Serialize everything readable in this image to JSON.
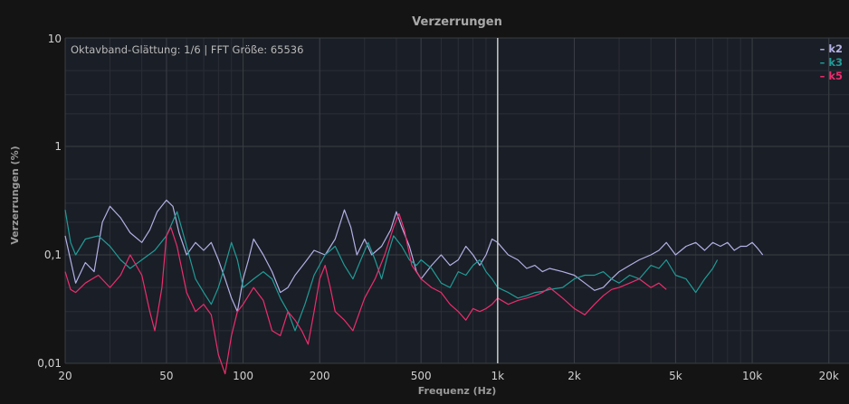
{
  "chart_data": {
    "type": "line",
    "title": "Verzerrungen",
    "xlabel": "Frequenz (Hz)",
    "ylabel": "Verzerrungen (%)",
    "info_text": "Oktavband-Glättung: 1/6 | FFT Größe: 65536",
    "x_scale": "log",
    "y_scale": "log",
    "xlim": [
      20,
      24000
    ],
    "ylim": [
      0.01,
      10
    ],
    "x_ticks": [
      {
        "value": 20,
        "label": "20"
      },
      {
        "value": 50,
        "label": "50"
      },
      {
        "value": 100,
        "label": "100"
      },
      {
        "value": 200,
        "label": "200"
      },
      {
        "value": 500,
        "label": "500"
      },
      {
        "value": 1000,
        "label": "1k"
      },
      {
        "value": 2000,
        "label": "2k"
      },
      {
        "value": 5000,
        "label": "5k"
      },
      {
        "value": 10000,
        "label": "10k"
      },
      {
        "value": 20000,
        "label": "20k"
      }
    ],
    "y_ticks": [
      {
        "value": 10,
        "label": "10"
      },
      {
        "value": 1,
        "label": "1"
      },
      {
        "value": 0.1,
        "label": "0,1"
      },
      {
        "value": 0.01,
        "label": "0,01"
      }
    ],
    "cursor_x": 1000,
    "grid": true,
    "legend_position": "top-right",
    "colors": {
      "background": "#141414",
      "plot_background": "#1a1e26",
      "grid": "#3a3d44",
      "cursor": "#c8c8c8"
    },
    "series": [
      {
        "name": "k2",
        "color": "#b3b0e6",
        "points": [
          [
            20,
            0.15
          ],
          [
            22,
            0.055
          ],
          [
            24,
            0.085
          ],
          [
            26,
            0.07
          ],
          [
            28,
            0.2
          ],
          [
            30,
            0.28
          ],
          [
            33,
            0.22
          ],
          [
            36,
            0.16
          ],
          [
            40,
            0.13
          ],
          [
            43,
            0.17
          ],
          [
            46,
            0.25
          ],
          [
            50,
            0.32
          ],
          [
            53,
            0.28
          ],
          [
            56,
            0.16
          ],
          [
            60,
            0.1
          ],
          [
            65,
            0.13
          ],
          [
            70,
            0.11
          ],
          [
            75,
            0.13
          ],
          [
            80,
            0.09
          ],
          [
            85,
            0.06
          ],
          [
            90,
            0.04
          ],
          [
            95,
            0.03
          ],
          [
            100,
            0.06
          ],
          [
            105,
            0.09
          ],
          [
            110,
            0.14
          ],
          [
            120,
            0.1
          ],
          [
            130,
            0.07
          ],
          [
            140,
            0.045
          ],
          [
            150,
            0.05
          ],
          [
            160,
            0.065
          ],
          [
            175,
            0.085
          ],
          [
            190,
            0.11
          ],
          [
            210,
            0.1
          ],
          [
            230,
            0.14
          ],
          [
            250,
            0.26
          ],
          [
            265,
            0.18
          ],
          [
            280,
            0.1
          ],
          [
            300,
            0.14
          ],
          [
            320,
            0.1
          ],
          [
            350,
            0.12
          ],
          [
            380,
            0.17
          ],
          [
            400,
            0.25
          ],
          [
            420,
            0.18
          ],
          [
            450,
            0.12
          ],
          [
            480,
            0.07
          ],
          [
            500,
            0.06
          ],
          [
            550,
            0.08
          ],
          [
            600,
            0.1
          ],
          [
            650,
            0.08
          ],
          [
            700,
            0.09
          ],
          [
            750,
            0.12
          ],
          [
            800,
            0.1
          ],
          [
            850,
            0.08
          ],
          [
            900,
            0.1
          ],
          [
            950,
            0.14
          ],
          [
            1000,
            0.13
          ],
          [
            1100,
            0.1
          ],
          [
            1200,
            0.09
          ],
          [
            1300,
            0.075
          ],
          [
            1400,
            0.08
          ],
          [
            1500,
            0.07
          ],
          [
            1600,
            0.075
          ],
          [
            1800,
            0.07
          ],
          [
            2000,
            0.065
          ],
          [
            2200,
            0.055
          ],
          [
            2400,
            0.047
          ],
          [
            2600,
            0.05
          ],
          [
            2800,
            0.06
          ],
          [
            3000,
            0.07
          ],
          [
            3300,
            0.08
          ],
          [
            3600,
            0.09
          ],
          [
            4000,
            0.1
          ],
          [
            4300,
            0.11
          ],
          [
            4600,
            0.13
          ],
          [
            5000,
            0.1
          ],
          [
            5500,
            0.12
          ],
          [
            6000,
            0.13
          ],
          [
            6500,
            0.11
          ],
          [
            7000,
            0.13
          ],
          [
            7500,
            0.12
          ],
          [
            8000,
            0.13
          ],
          [
            8500,
            0.11
          ],
          [
            9000,
            0.12
          ],
          [
            9500,
            0.12
          ],
          [
            10000,
            0.13
          ],
          [
            10500,
            0.115
          ],
          [
            11000,
            0.1
          ]
        ]
      },
      {
        "name": "k3",
        "color": "#1f9c98",
        "points": [
          [
            20,
            0.26
          ],
          [
            21,
            0.13
          ],
          [
            22,
            0.1
          ],
          [
            24,
            0.14
          ],
          [
            27,
            0.15
          ],
          [
            30,
            0.12
          ],
          [
            33,
            0.09
          ],
          [
            36,
            0.075
          ],
          [
            40,
            0.09
          ],
          [
            45,
            0.11
          ],
          [
            50,
            0.15
          ],
          [
            55,
            0.25
          ],
          [
            60,
            0.12
          ],
          [
            65,
            0.06
          ],
          [
            70,
            0.045
          ],
          [
            75,
            0.035
          ],
          [
            80,
            0.05
          ],
          [
            85,
            0.08
          ],
          [
            90,
            0.13
          ],
          [
            95,
            0.09
          ],
          [
            100,
            0.05
          ],
          [
            110,
            0.06
          ],
          [
            120,
            0.07
          ],
          [
            130,
            0.06
          ],
          [
            140,
            0.04
          ],
          [
            150,
            0.03
          ],
          [
            160,
            0.02
          ],
          [
            175,
            0.035
          ],
          [
            190,
            0.065
          ],
          [
            210,
            0.1
          ],
          [
            230,
            0.12
          ],
          [
            250,
            0.08
          ],
          [
            270,
            0.06
          ],
          [
            290,
            0.09
          ],
          [
            310,
            0.13
          ],
          [
            330,
            0.09
          ],
          [
            350,
            0.06
          ],
          [
            370,
            0.1
          ],
          [
            390,
            0.15
          ],
          [
            420,
            0.12
          ],
          [
            450,
            0.09
          ],
          [
            480,
            0.08
          ],
          [
            500,
            0.09
          ],
          [
            550,
            0.075
          ],
          [
            600,
            0.055
          ],
          [
            650,
            0.05
          ],
          [
            700,
            0.07
          ],
          [
            750,
            0.065
          ],
          [
            800,
            0.08
          ],
          [
            850,
            0.09
          ],
          [
            900,
            0.07
          ],
          [
            950,
            0.06
          ],
          [
            1000,
            0.05
          ],
          [
            1100,
            0.045
          ],
          [
            1200,
            0.04
          ],
          [
            1300,
            0.042
          ],
          [
            1400,
            0.045
          ],
          [
            1500,
            0.046
          ],
          [
            1600,
            0.048
          ],
          [
            1800,
            0.05
          ],
          [
            2000,
            0.06
          ],
          [
            2200,
            0.065
          ],
          [
            2400,
            0.065
          ],
          [
            2600,
            0.07
          ],
          [
            2800,
            0.06
          ],
          [
            3000,
            0.055
          ],
          [
            3300,
            0.065
          ],
          [
            3600,
            0.06
          ],
          [
            4000,
            0.08
          ],
          [
            4300,
            0.075
          ],
          [
            4600,
            0.09
          ],
          [
            5000,
            0.065
          ],
          [
            5500,
            0.06
          ],
          [
            6000,
            0.045
          ],
          [
            6500,
            0.06
          ],
          [
            7000,
            0.075
          ],
          [
            7300,
            0.09
          ]
        ]
      },
      {
        "name": "k5",
        "color": "#ec2d6e",
        "points": [
          [
            20,
            0.07
          ],
          [
            21,
            0.048
          ],
          [
            22,
            0.045
          ],
          [
            24,
            0.055
          ],
          [
            27,
            0.065
          ],
          [
            30,
            0.05
          ],
          [
            33,
            0.065
          ],
          [
            36,
            0.1
          ],
          [
            40,
            0.065
          ],
          [
            43,
            0.03
          ],
          [
            45,
            0.02
          ],
          [
            48,
            0.05
          ],
          [
            50,
            0.15
          ],
          [
            52,
            0.18
          ],
          [
            55,
            0.12
          ],
          [
            60,
            0.045
          ],
          [
            65,
            0.03
          ],
          [
            70,
            0.035
          ],
          [
            75,
            0.028
          ],
          [
            80,
            0.012
          ],
          [
            85,
            0.008
          ],
          [
            90,
            0.018
          ],
          [
            95,
            0.03
          ],
          [
            100,
            0.035
          ],
          [
            110,
            0.05
          ],
          [
            120,
            0.038
          ],
          [
            130,
            0.02
          ],
          [
            140,
            0.018
          ],
          [
            150,
            0.03
          ],
          [
            160,
            0.025
          ],
          [
            170,
            0.02
          ],
          [
            180,
            0.015
          ],
          [
            190,
            0.03
          ],
          [
            200,
            0.06
          ],
          [
            210,
            0.08
          ],
          [
            220,
            0.05
          ],
          [
            230,
            0.03
          ],
          [
            250,
            0.025
          ],
          [
            270,
            0.02
          ],
          [
            300,
            0.04
          ],
          [
            330,
            0.06
          ],
          [
            360,
            0.1
          ],
          [
            390,
            0.18
          ],
          [
            410,
            0.24
          ],
          [
            430,
            0.17
          ],
          [
            460,
            0.08
          ],
          [
            500,
            0.06
          ],
          [
            550,
            0.05
          ],
          [
            600,
            0.045
          ],
          [
            650,
            0.035
          ],
          [
            700,
            0.03
          ],
          [
            750,
            0.025
          ],
          [
            800,
            0.032
          ],
          [
            850,
            0.03
          ],
          [
            900,
            0.032
          ],
          [
            950,
            0.035
          ],
          [
            1000,
            0.04
          ],
          [
            1100,
            0.035
          ],
          [
            1200,
            0.038
          ],
          [
            1300,
            0.04
          ],
          [
            1400,
            0.042
          ],
          [
            1500,
            0.045
          ],
          [
            1600,
            0.05
          ],
          [
            1800,
            0.04
          ],
          [
            2000,
            0.032
          ],
          [
            2200,
            0.028
          ],
          [
            2400,
            0.035
          ],
          [
            2600,
            0.042
          ],
          [
            2800,
            0.048
          ],
          [
            3000,
            0.05
          ],
          [
            3300,
            0.055
          ],
          [
            3600,
            0.06
          ],
          [
            4000,
            0.05
          ],
          [
            4300,
            0.055
          ],
          [
            4600,
            0.048
          ]
        ]
      }
    ]
  }
}
